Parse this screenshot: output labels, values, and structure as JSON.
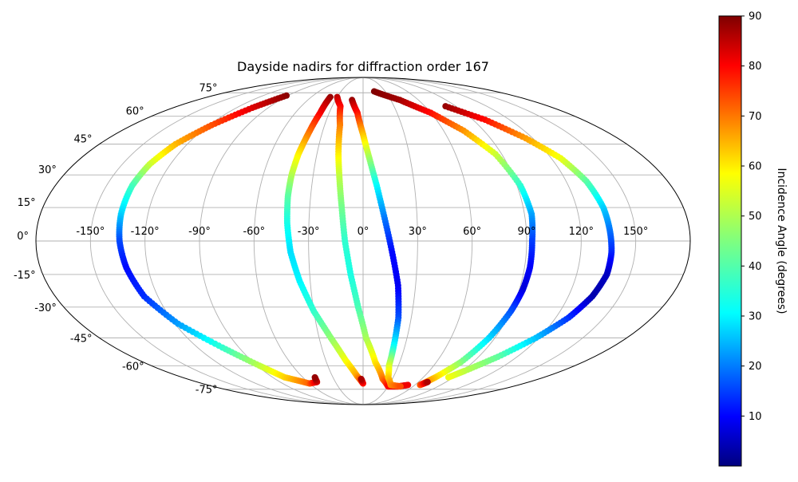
{
  "chart_data": {
    "type": "scatter",
    "projection": "mollweide",
    "title": "Dayside nadirs for diffraction order 167",
    "xlabel": "",
    "ylabel": "",
    "xlim": [
      -180,
      180
    ],
    "ylim": [
      -90,
      90
    ],
    "grid": true,
    "lon_ticks": [
      -150,
      -120,
      -90,
      -60,
      -30,
      0,
      30,
      60,
      90,
      120,
      150
    ],
    "lon_tick_labels": [
      "-150°",
      "-120°",
      "-90°",
      "-60°",
      "-30°",
      "0°",
      "30°",
      "60°",
      "90°",
      "120°",
      "150°"
    ],
    "lat_ticks": [
      75,
      60,
      45,
      30,
      15,
      0,
      -15,
      -30,
      -45,
      -60,
      -75
    ],
    "lat_tick_labels": [
      "75°",
      "60°",
      "45°",
      "30°",
      "15°",
      "0°",
      "-15°",
      "-30°",
      "-45°",
      "-60°",
      "-75°"
    ],
    "colorbar": {
      "label": "Incidence Angle (degrees)",
      "colormap": "jet",
      "range": [
        0,
        90
      ],
      "ticks": [
        10,
        20,
        30,
        40,
        50,
        60,
        70,
        80,
        90
      ],
      "tick_labels": [
        "10",
        "20",
        "30",
        "40",
        "50",
        "60",
        "70",
        "80",
        "90"
      ]
    },
    "series": [
      {
        "points": [
          {
            "lon": -92,
            "lat": 73,
            "incidence": 89
          },
          {
            "lon": -105,
            "lat": 65,
            "incidence": 82
          },
          {
            "lon": -118,
            "lat": 55,
            "incidence": 72
          },
          {
            "lon": -128,
            "lat": 45,
            "incidence": 63
          },
          {
            "lon": -133,
            "lat": 35,
            "incidence": 52
          },
          {
            "lon": -135,
            "lat": 25,
            "incidence": 40
          },
          {
            "lon": -135,
            "lat": 12,
            "incidence": 30
          },
          {
            "lon": -134,
            "lat": 0,
            "incidence": 18
          },
          {
            "lon": -132,
            "lat": -12,
            "incidence": 12
          },
          {
            "lon": -128,
            "lat": -25,
            "incidence": 15
          },
          {
            "lon": -118,
            "lat": -38,
            "incidence": 25
          },
          {
            "lon": -102,
            "lat": -50,
            "incidence": 38
          },
          {
            "lon": -88,
            "lat": -60,
            "incidence": 50
          },
          {
            "lon": -78,
            "lat": -67,
            "incidence": 60
          },
          {
            "lon": -60,
            "lat": -71,
            "incidence": 70
          },
          {
            "lon": -50,
            "lat": -70,
            "incidence": 82
          },
          {
            "lon": -48,
            "lat": -67,
            "incidence": 88
          }
        ]
      },
      {
        "points": [
          {
            "lon": -38,
            "lat": 72,
            "incidence": 88
          },
          {
            "lon": -38,
            "lat": 62,
            "incidence": 80
          },
          {
            "lon": -40,
            "lat": 50,
            "incidence": 68
          },
          {
            "lon": -42,
            "lat": 40,
            "incidence": 58
          },
          {
            "lon": -43,
            "lat": 30,
            "incidence": 50
          },
          {
            "lon": -43,
            "lat": 20,
            "incidence": 42
          },
          {
            "lon": -42,
            "lat": 8,
            "incidence": 36
          },
          {
            "lon": -40,
            "lat": -5,
            "incidence": 31
          },
          {
            "lon": -36,
            "lat": -18,
            "incidence": 33
          },
          {
            "lon": -30,
            "lat": -32,
            "incidence": 38
          },
          {
            "lon": -22,
            "lat": -45,
            "incidence": 46
          },
          {
            "lon": -14,
            "lat": -57,
            "incidence": 55
          },
          {
            "lon": -6,
            "lat": -66,
            "incidence": 64
          },
          {
            "lon": 0,
            "lat": -71,
            "incidence": 76
          },
          {
            "lon": -2,
            "lat": -68,
            "incidence": 86
          }
        ]
      },
      {
        "points": [
          {
            "lon": -30,
            "lat": 72,
            "incidence": 85
          },
          {
            "lon": -22,
            "lat": 66,
            "incidence": 79
          },
          {
            "lon": -18,
            "lat": 55,
            "incidence": 68
          },
          {
            "lon": -16,
            "lat": 40,
            "incidence": 58
          },
          {
            "lon": -14,
            "lat": 28,
            "incidence": 50
          },
          {
            "lon": -12,
            "lat": 15,
            "incidence": 44
          },
          {
            "lon": -10,
            "lat": 0,
            "incidence": 38
          },
          {
            "lon": -7,
            "lat": -15,
            "incidence": 36
          },
          {
            "lon": -3,
            "lat": -30,
            "incidence": 40
          },
          {
            "lon": 2,
            "lat": -45,
            "incidence": 48
          },
          {
            "lon": 10,
            "lat": -58,
            "incidence": 58
          },
          {
            "lon": 20,
            "lat": -68,
            "incidence": 68
          },
          {
            "lon": 30,
            "lat": -73,
            "incidence": 78
          },
          {
            "lon": 42,
            "lat": -73,
            "incidence": 82
          },
          {
            "lon": 52,
            "lat": -72,
            "incidence": 80
          }
        ]
      },
      {
        "points": [
          {
            "lon": -12,
            "lat": 70,
            "incidence": 88
          },
          {
            "lon": -5,
            "lat": 62,
            "incidence": 78
          },
          {
            "lon": 0,
            "lat": 50,
            "incidence": 62
          },
          {
            "lon": 4,
            "lat": 38,
            "incidence": 48
          },
          {
            "lon": 8,
            "lat": 25,
            "incidence": 34
          },
          {
            "lon": 12,
            "lat": 10,
            "incidence": 22
          },
          {
            "lon": 16,
            "lat": -5,
            "incidence": 12
          },
          {
            "lon": 20,
            "lat": -20,
            "incidence": 10
          },
          {
            "lon": 22,
            "lat": -35,
            "incidence": 18
          },
          {
            "lon": 22,
            "lat": -50,
            "incidence": 35
          },
          {
            "lon": 22,
            "lat": -60,
            "incidence": 52
          },
          {
            "lon": 25,
            "lat": -67,
            "incidence": 60
          },
          {
            "lon": 32,
            "lat": -72,
            "incidence": 66
          },
          {
            "lon": 45,
            "lat": -73,
            "incidence": 72
          }
        ]
      },
      {
        "points": [
          {
            "lon": 15,
            "lat": 76,
            "incidence": 90
          },
          {
            "lon": 40,
            "lat": 70,
            "incidence": 87
          },
          {
            "lon": 60,
            "lat": 62,
            "incidence": 78
          },
          {
            "lon": 75,
            "lat": 52,
            "incidence": 66
          },
          {
            "lon": 86,
            "lat": 40,
            "incidence": 52
          },
          {
            "lon": 92,
            "lat": 25,
            "incidence": 38
          },
          {
            "lon": 94,
            "lat": 12,
            "incidence": 26
          },
          {
            "lon": 93,
            "lat": 0,
            "incidence": 17
          },
          {
            "lon": 93,
            "lat": -12,
            "incidence": 11
          },
          {
            "lon": 92,
            "lat": -22,
            "incidence": 8
          },
          {
            "lon": 90,
            "lat": -32,
            "incidence": 18
          },
          {
            "lon": 86,
            "lat": -45,
            "incidence": 30
          },
          {
            "lon": 80,
            "lat": -58,
            "incidence": 45
          },
          {
            "lon": 72,
            "lat": -67,
            "incidence": 60
          },
          {
            "lon": 66,
            "lat": -72,
            "incidence": 70
          },
          {
            "lon": 70,
            "lat": -70,
            "incidence": 86
          }
        ]
      },
      {
        "points": [
          {
            "lon": 80,
            "lat": 66,
            "incidence": 88
          },
          {
            "lon": 100,
            "lat": 58,
            "incidence": 78
          },
          {
            "lon": 115,
            "lat": 48,
            "incidence": 65
          },
          {
            "lon": 126,
            "lat": 38,
            "incidence": 55
          },
          {
            "lon": 132,
            "lat": 27,
            "incidence": 42
          },
          {
            "lon": 135,
            "lat": 15,
            "incidence": 30
          },
          {
            "lon": 136,
            "lat": 5,
            "incidence": 22
          },
          {
            "lon": 137,
            "lat": -5,
            "incidence": 15
          },
          {
            "lon": 137,
            "lat": -15,
            "incidence": 6
          },
          {
            "lon": 134,
            "lat": -25,
            "incidence": 4
          },
          {
            "lon": 128,
            "lat": -35,
            "incidence": 15
          },
          {
            "lon": 118,
            "lat": -45,
            "incidence": 28
          },
          {
            "lon": 105,
            "lat": -55,
            "incidence": 42
          },
          {
            "lon": 92,
            "lat": -63,
            "incidence": 50
          },
          {
            "lon": 85,
            "lat": -67,
            "incidence": 55
          }
        ]
      }
    ]
  }
}
